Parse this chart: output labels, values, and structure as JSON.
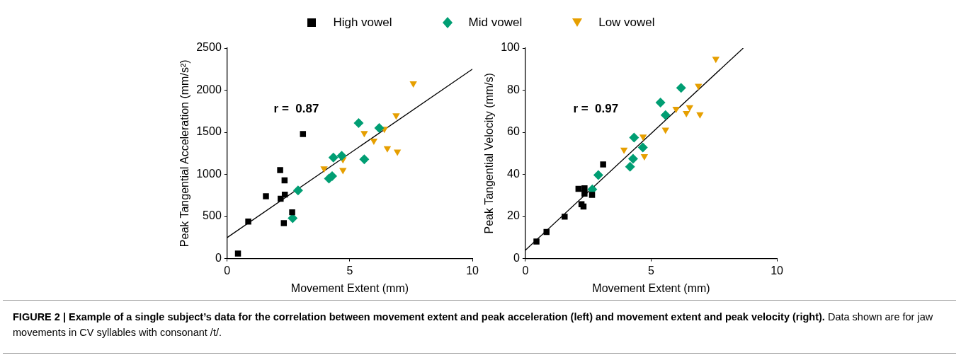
{
  "chart_data": [
    {
      "type": "scatter",
      "xlabel": "Movement Extent (mm)",
      "ylabel": "Peak Tangential Acceleration (mm/s²)",
      "xlim": [
        0,
        10
      ],
      "xticks": [
        0,
        5,
        10
      ],
      "ylim": [
        0,
        2500
      ],
      "yticks": [
        0,
        500,
        1000,
        1500,
        2000,
        2500
      ],
      "grid": false,
      "legend": "top",
      "annotations": [
        "r =  0.87",
        "FIGURE 2 | Example of a single subject’s data for the correlation between movement extent and peak acceleration (left) and movement extent and peak velocity (right).",
        "Data shown are for jaw movements in CV syllables with consonant /t/."
      ],
      "series": [
        {
          "name": "High vowel",
          "color": "#000000",
          "marker": "square",
          "x": [
            0.44,
            0.86,
            1.58,
            2.16,
            2.18,
            2.34,
            2.35,
            2.31,
            2.65,
            3.09
          ],
          "values": [
            60,
            440,
            740,
            1050,
            710,
            930,
            760,
            420,
            550,
            1480
          ]
        },
        {
          "name": "Mid vowel",
          "color": "#009e73",
          "marker": "diamond",
          "x": [
            2.67,
            2.89,
            4.15,
            4.28,
            4.33,
            4.67,
            5.36,
            5.59,
            6.2
          ],
          "values": [
            480,
            810,
            950,
            980,
            1200,
            1220,
            1610,
            1180,
            1550
          ]
        },
        {
          "name": "Low vowel",
          "color": "#e69f00",
          "marker": "triangle",
          "x": [
            7.59,
            6.89,
            6.41,
            5.59,
            5.98,
            6.53,
            6.94,
            3.95,
            4.72,
            4.72
          ],
          "values": [
            2080,
            1700,
            1540,
            1490,
            1400,
            1310,
            1270,
            1070,
            1180,
            1050
          ]
        },
        {
          "type": "line",
          "color": "#000000",
          "marker": "none",
          "x": [
            0,
            10
          ],
          "values": [
            250,
            2250
          ]
        }
      ]
    },
    {
      "type": "scatter",
      "xlabel": "Movement Extent (mm)",
      "ylabel": "Peak Tangential Velocity (mm/s)",
      "xlim": [
        0,
        10
      ],
      "xticks": [
        0,
        5,
        10
      ],
      "ylim": [
        0,
        100
      ],
      "yticks": [
        0,
        20,
        40,
        60,
        80,
        100
      ],
      "grid": false,
      "annotations": [
        "r =  0.97"
      ],
      "series": [
        {
          "color": "#000000",
          "marker": "square",
          "x": [
            0.44,
            0.84,
            1.56,
            2.11,
            2.35,
            2.23,
            2.31,
            2.35,
            2.65,
            3.09
          ],
          "values": [
            8.1,
            12.6,
            19.9,
            33.1,
            33.4,
            25.8,
            24.7,
            30.9,
            30.3,
            44.7
          ]
        },
        {
          "color": "#009e73",
          "marker": "diamond",
          "x": [
            2.66,
            2.9,
            4.16,
            4.28,
            4.32,
            4.67,
            5.37,
            5.57,
            6.19
          ],
          "values": [
            32.9,
            39.7,
            43.6,
            47.4,
            57.5,
            52.8,
            74.1,
            68.2,
            81.1
          ]
        },
        {
          "color": "#e69f00",
          "marker": "triangle",
          "x": [
            7.57,
            6.88,
            5.99,
            6.53,
            6.4,
            6.94,
            5.57,
            4.68,
            3.92,
            4.73
          ],
          "values": [
            94.9,
            82,
            71.1,
            71.9,
            69.1,
            68.5,
            61.2,
            57.9,
            51.7,
            48.6
          ]
        },
        {
          "type": "line",
          "color": "#000000",
          "marker": "none",
          "x": [
            0,
            8.66
          ],
          "values": [
            4,
            100
          ]
        }
      ]
    }
  ]
}
